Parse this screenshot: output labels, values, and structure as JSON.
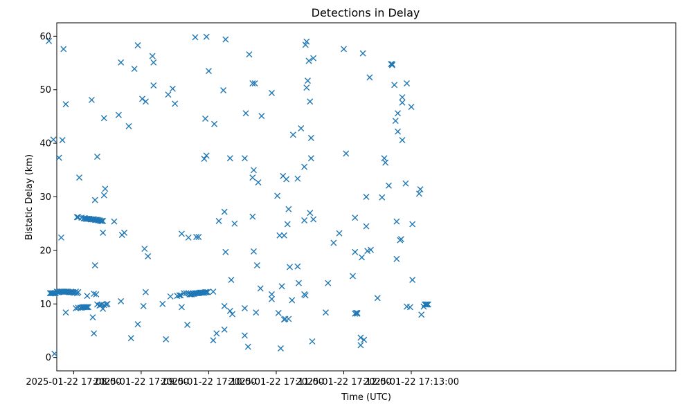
{
  "chart_data": {
    "type": "scatter",
    "title": "Detections in Delay",
    "xlabel": "Time (UTC)",
    "ylabel": "Bistatic Delay (km)",
    "xlim": [
      -15,
      535
    ],
    "ylim": [
      -2.5,
      62.5
    ],
    "grid": false,
    "marker": "x",
    "color": "#1f77b4",
    "x_ticks": [
      {
        "value": 0,
        "label": "2025-01-22 17:08:00"
      },
      {
        "value": 60,
        "label": "2025-01-22 17:09:00"
      },
      {
        "value": 120,
        "label": "2025-01-22 17:10:00"
      },
      {
        "value": 180,
        "label": "2025-01-22 17:11:00"
      },
      {
        "value": 240,
        "label": "2025-01-22 17:12:00"
      },
      {
        "value": 300,
        "label": "2025-01-22 17:13:00"
      }
    ],
    "y_ticks": [
      0,
      10,
      20,
      30,
      40,
      50,
      60
    ],
    "x_units": "seconds after 2025-01-22 17:08:00 UTC",
    "points": [
      [
        -21,
        12
      ],
      [
        -20,
        12
      ],
      [
        -19,
        12
      ],
      [
        -18,
        12
      ],
      [
        -17,
        12
      ],
      [
        -16,
        12
      ],
      [
        -15,
        12.3
      ],
      [
        -14,
        12.2
      ],
      [
        -13,
        12.2
      ],
      [
        -12,
        12.3
      ],
      [
        -11,
        12.3
      ],
      [
        -10,
        12.3
      ],
      [
        -9,
        12.3
      ],
      [
        -8,
        12.3
      ],
      [
        -7,
        12.3
      ],
      [
        -6,
        12.3
      ],
      [
        -5,
        12.3
      ],
      [
        -4,
        12.2
      ],
      [
        -3,
        12.2
      ],
      [
        -2,
        12.2
      ],
      [
        -1,
        12.2
      ],
      [
        0,
        12.1
      ],
      [
        1,
        12.1
      ],
      [
        2,
        12.3
      ],
      [
        3,
        12
      ],
      [
        4,
        12.2
      ],
      [
        -22,
        59.1
      ],
      [
        -18,
        40.7
      ],
      [
        -13,
        37.3
      ],
      [
        -11,
        22.4
      ],
      [
        -10,
        40.6
      ],
      [
        -9,
        57.6
      ],
      [
        -7,
        47.3
      ],
      [
        -7,
        8.4
      ],
      [
        -17,
        0.7
      ],
      [
        2,
        9.2
      ],
      [
        4,
        9.3
      ],
      [
        6,
        9.3
      ],
      [
        7,
        9.3
      ],
      [
        8,
        9.4
      ],
      [
        9,
        9.4
      ],
      [
        10,
        9.4
      ],
      [
        11,
        9.4
      ],
      [
        12,
        9.4
      ],
      [
        13,
        9.4
      ],
      [
        3,
        26.2
      ],
      [
        4,
        26.2
      ],
      [
        5,
        33.6
      ],
      [
        7,
        26.1
      ],
      [
        9,
        26
      ],
      [
        10,
        26
      ],
      [
        11,
        25.9
      ],
      [
        12,
        25.9
      ],
      [
        13,
        25.9
      ],
      [
        14,
        25.9
      ],
      [
        15,
        25.8
      ],
      [
        16,
        25.8
      ],
      [
        17,
        25.8
      ],
      [
        18,
        25.8
      ],
      [
        19,
        25.7
      ],
      [
        20,
        25.7
      ],
      [
        21,
        25.7
      ],
      [
        22,
        25.6
      ],
      [
        23,
        25.6
      ],
      [
        24,
        25.5
      ],
      [
        25,
        25.5
      ],
      [
        26,
        25.5
      ],
      [
        12,
        11.5
      ],
      [
        16,
        48.1
      ],
      [
        17,
        7.5
      ],
      [
        18,
        4.5
      ],
      [
        18,
        11.9
      ],
      [
        19,
        29.4
      ],
      [
        19,
        17.2
      ],
      [
        20,
        11.8
      ],
      [
        21,
        37.5
      ],
      [
        21,
        9.9
      ],
      [
        23,
        9.7
      ],
      [
        24,
        9.8
      ],
      [
        25,
        9.9
      ],
      [
        26,
        23.3
      ],
      [
        26,
        9.1
      ],
      [
        27,
        9.8
      ],
      [
        27,
        30.3
      ],
      [
        27,
        44.7
      ],
      [
        28,
        31.5
      ],
      [
        29,
        9.9
      ],
      [
        30,
        10
      ],
      [
        36,
        25.4
      ],
      [
        40,
        45.3
      ],
      [
        42,
        55.1
      ],
      [
        42,
        10.5
      ],
      [
        43,
        22.9
      ],
      [
        45,
        23.3
      ],
      [
        49,
        43.2
      ],
      [
        51,
        3.6
      ],
      [
        54,
        53.9
      ],
      [
        57,
        58.3
      ],
      [
        57,
        6.2
      ],
      [
        61,
        48.3
      ],
      [
        62,
        9.6
      ],
      [
        63,
        20.3
      ],
      [
        64,
        47.8
      ],
      [
        64,
        12.2
      ],
      [
        66,
        18.9
      ],
      [
        70,
        56.3
      ],
      [
        71,
        55.1
      ],
      [
        71,
        50.8
      ],
      [
        79,
        10
      ],
      [
        82,
        3.4
      ],
      [
        84,
        49.1
      ],
      [
        86,
        11.4
      ],
      [
        88,
        50.2
      ],
      [
        90,
        47.4
      ],
      [
        92,
        11.5
      ],
      [
        94,
        11.6
      ],
      [
        95,
        11.6
      ],
      [
        96,
        9.4
      ],
      [
        96,
        23.1
      ],
      [
        98,
        12
      ],
      [
        100,
        12
      ],
      [
        101,
        6.1
      ],
      [
        102,
        22.4
      ],
      [
        102,
        12
      ],
      [
        103,
        11.8
      ],
      [
        104,
        11.8
      ],
      [
        105,
        11.8
      ],
      [
        106,
        11.9
      ],
      [
        107,
        11.9
      ],
      [
        108,
        12
      ],
      [
        109,
        12
      ],
      [
        110,
        12
      ],
      [
        111,
        12
      ],
      [
        112,
        12.1
      ],
      [
        113,
        12.1
      ],
      [
        114,
        12.1
      ],
      [
        115,
        12.1
      ],
      [
        116,
        12.1
      ],
      [
        117,
        12.2
      ],
      [
        118,
        12.2
      ],
      [
        119,
        12.2
      ],
      [
        109,
        22.5
      ],
      [
        111,
        22.5
      ],
      [
        108,
        59.8
      ],
      [
        118,
        59.9
      ],
      [
        116,
        37.1
      ],
      [
        117,
        44.6
      ],
      [
        118,
        37.7
      ],
      [
        120,
        53.5
      ],
      [
        124,
        12.3
      ],
      [
        124,
        3.2
      ],
      [
        125,
        43.6
      ],
      [
        127,
        4.5
      ],
      [
        129,
        25.5
      ],
      [
        133,
        49.9
      ],
      [
        134,
        9.6
      ],
      [
        134,
        5.2
      ],
      [
        135,
        19.7
      ],
      [
        135,
        59.4
      ],
      [
        134,
        27.2
      ],
      [
        139,
        37.2
      ],
      [
        139,
        8.7
      ],
      [
        140,
        14.5
      ],
      [
        141,
        8.1
      ],
      [
        143,
        25
      ],
      [
        152,
        37.2
      ],
      [
        152,
        9.2
      ],
      [
        152,
        4.1
      ],
      [
        153,
        45.6
      ],
      [
        155,
        2
      ],
      [
        156,
        56.6
      ],
      [
        159,
        51.2
      ],
      [
        159,
        33.6
      ],
      [
        160,
        35
      ],
      [
        159,
        26.3
      ],
      [
        160,
        19.8
      ],
      [
        161,
        51.2
      ],
      [
        162,
        8.4
      ],
      [
        163,
        17.2
      ],
      [
        164,
        32.7
      ],
      [
        166,
        12.9
      ],
      [
        167,
        45.1
      ],
      [
        176,
        49.4
      ],
      [
        176,
        11.8
      ],
      [
        176,
        10.9
      ],
      [
        181,
        30.2
      ],
      [
        182,
        8.3
      ],
      [
        183,
        22.8
      ],
      [
        184,
        1.7
      ],
      [
        185,
        13.3
      ],
      [
        186,
        33.9
      ],
      [
        187,
        22.8
      ],
      [
        187,
        7.1
      ],
      [
        188,
        7.2
      ],
      [
        189,
        33.3
      ],
      [
        190,
        24.9
      ],
      [
        191,
        27.7
      ],
      [
        191,
        7.2
      ],
      [
        192,
        16.9
      ],
      [
        194,
        10.7
      ],
      [
        195,
        41.6
      ],
      [
        199,
        33.4
      ],
      [
        199,
        17
      ],
      [
        200,
        13.9
      ],
      [
        202,
        42.8
      ],
      [
        205,
        35.6
      ],
      [
        205,
        11.8
      ],
      [
        206,
        11.6
      ],
      [
        205,
        25.6
      ],
      [
        206,
        58.4
      ],
      [
        207,
        59
      ],
      [
        207,
        50.4
      ],
      [
        208,
        51.7
      ],
      [
        209,
        55.4
      ],
      [
        210,
        47.8
      ],
      [
        210,
        27
      ],
      [
        211,
        41
      ],
      [
        211,
        37.2
      ],
      [
        212,
        3
      ],
      [
        213,
        25.8
      ],
      [
        213,
        55.9
      ],
      [
        224,
        8.4
      ],
      [
        226,
        13.9
      ],
      [
        231,
        21.4
      ],
      [
        236,
        23.2
      ],
      [
        240,
        57.6
      ],
      [
        242,
        38.1
      ],
      [
        248,
        15.2
      ],
      [
        250,
        19.7
      ],
      [
        250,
        26.1
      ],
      [
        250,
        8.2
      ],
      [
        251,
        8.3
      ],
      [
        252,
        8.2
      ],
      [
        252,
        8.3
      ],
      [
        255,
        3.7
      ],
      [
        255,
        2.3
      ],
      [
        256,
        18.7
      ],
      [
        257,
        56.8
      ],
      [
        258,
        3.3
      ],
      [
        260,
        30
      ],
      [
        260,
        24.5
      ],
      [
        261,
        19.9
      ],
      [
        263,
        52.3
      ],
      [
        264,
        20.1
      ],
      [
        270,
        11.1
      ],
      [
        274,
        29.9
      ],
      [
        276,
        37.2
      ],
      [
        277,
        36.4
      ],
      [
        280,
        32.1
      ],
      [
        282,
        54.8
      ],
      [
        283,
        54.6
      ],
      [
        283,
        54.8
      ],
      [
        285,
        50.9
      ],
      [
        286,
        44.2
      ],
      [
        287,
        18.4
      ],
      [
        287,
        25.4
      ],
      [
        288,
        45.6
      ],
      [
        288,
        42.2
      ],
      [
        290,
        21.9
      ],
      [
        291,
        22.1
      ],
      [
        292,
        40.6
      ],
      [
        292,
        48.6
      ],
      [
        292,
        47.6
      ],
      [
        295,
        32.5
      ],
      [
        296,
        51.2
      ],
      [
        296,
        9.5
      ],
      [
        299,
        9.4
      ],
      [
        300,
        46.8
      ],
      [
        301,
        24.9
      ],
      [
        301,
        14.5
      ],
      [
        307,
        30.6
      ],
      [
        308,
        31.4
      ],
      [
        309,
        8
      ],
      [
        311,
        9.5
      ],
      [
        312,
        9.9
      ],
      [
        313,
        9.9
      ],
      [
        314,
        9.9
      ],
      [
        315,
        9.9
      ]
    ]
  }
}
